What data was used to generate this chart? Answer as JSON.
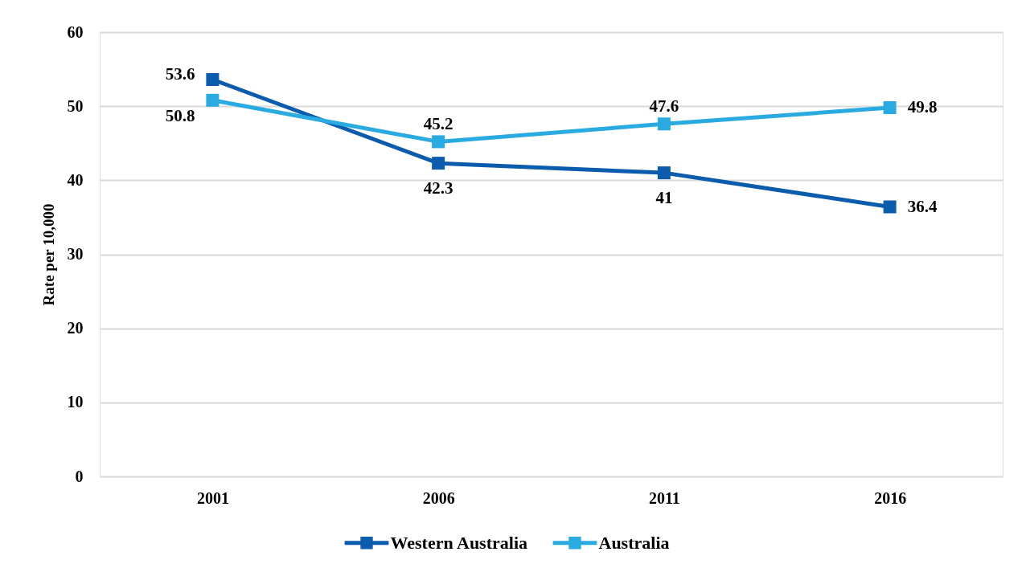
{
  "chart_data": {
    "type": "line",
    "ylabel": "Rate per 10,000",
    "categories": [
      "2001",
      "2006",
      "2011",
      "2016"
    ],
    "series": [
      {
        "name": "Western Australia",
        "color": "#0b5cad",
        "values": [
          53.6,
          42.3,
          41,
          36.4
        ]
      },
      {
        "name": "Australia",
        "color": "#29abe2",
        "values": [
          50.8,
          45.2,
          47.6,
          49.8
        ]
      }
    ],
    "ylim": [
      0,
      60
    ],
    "yticks": [
      0,
      10,
      20,
      30,
      40,
      50,
      60
    ],
    "grid": "y",
    "legend": "bottom",
    "marker": "square",
    "line_style": "solid",
    "data_labels": true
  }
}
